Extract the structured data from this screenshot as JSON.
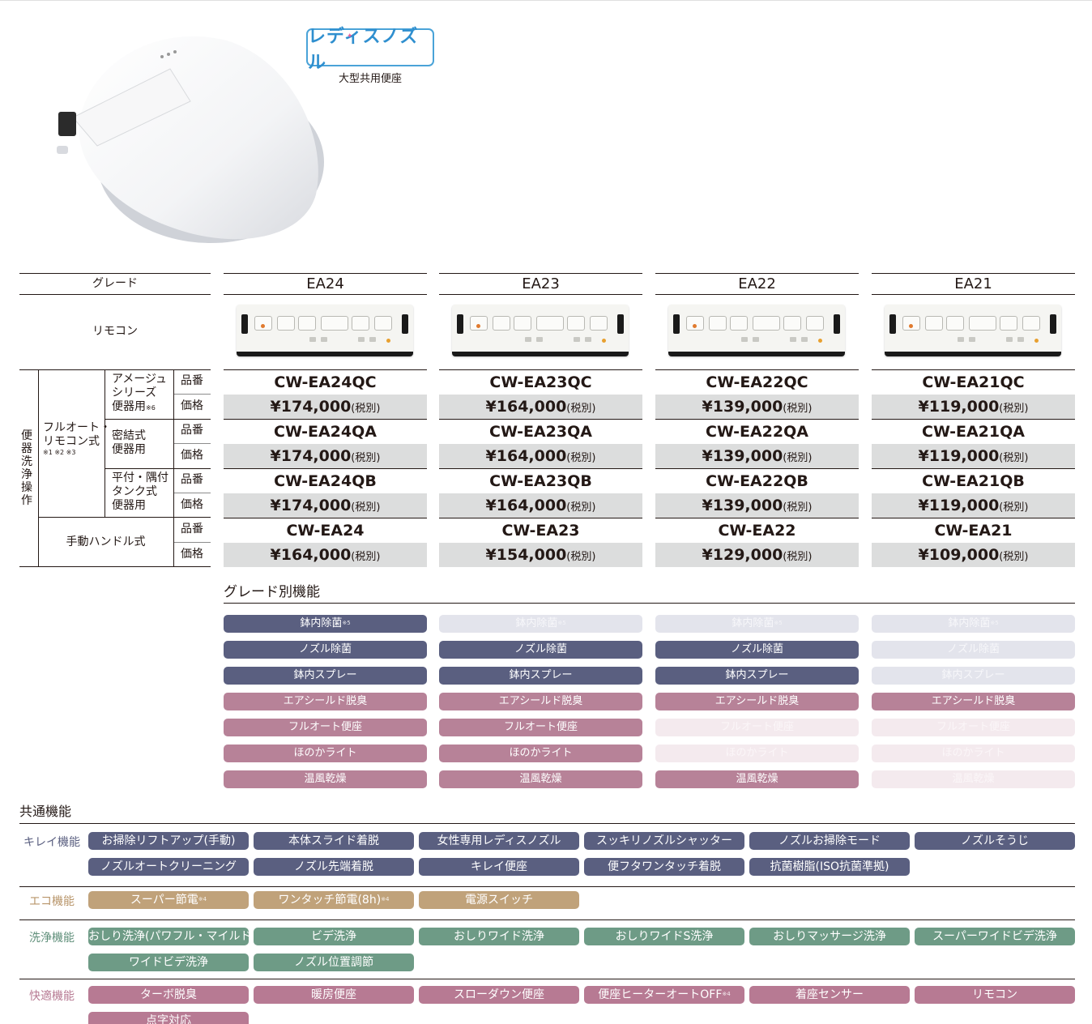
{
  "product": {
    "logo_text": "レディスノズル",
    "subtitle": "大型共用便座"
  },
  "table": {
    "grade_label": "グレード",
    "remote_label": "リモコン",
    "row_group_label": "便器洗浄操作",
    "fullauto_label_l1": "フルオート・",
    "fullauto_label_l2": "リモコン式",
    "fullauto_notes": "※1 ※2 ※3",
    "sub_amage_l1": "アメージュ",
    "sub_amage_l2": "シリーズ",
    "sub_amage_l3": "便器用",
    "sub_amage_note": "※6",
    "sub_mitsu_l1": "密結式",
    "sub_mitsu_l2": "便器用",
    "sub_hira_l1": "平付・隅付",
    "sub_hira_l2": "タンク式",
    "sub_hira_l3": "便器用",
    "manual_label": "手動ハンドル式",
    "hinban": "品番",
    "kakaku": "価格",
    "tax_note": "(税別)",
    "grades": [
      {
        "name": "EA24",
        "qc": "CW-EA24QC",
        "qc_price": "¥174,000",
        "qa": "CW-EA24QA",
        "qa_price": "¥174,000",
        "qb": "CW-EA24QB",
        "qb_price": "¥174,000",
        "manual": "CW-EA24",
        "manual_price": "¥164,000"
      },
      {
        "name": "EA23",
        "qc": "CW-EA23QC",
        "qc_price": "¥164,000",
        "qa": "CW-EA23QA",
        "qa_price": "¥164,000",
        "qb": "CW-EA23QB",
        "qb_price": "¥164,000",
        "manual": "CW-EA23",
        "manual_price": "¥154,000"
      },
      {
        "name": "EA22",
        "qc": "CW-EA22QC",
        "qc_price": "¥139,000",
        "qa": "CW-EA22QA",
        "qa_price": "¥139,000",
        "qb": "CW-EA22QB",
        "qb_price": "¥139,000",
        "manual": "CW-EA22",
        "manual_price": "¥129,000"
      },
      {
        "name": "EA21",
        "qc": "CW-EA21QC",
        "qc_price": "¥119,000",
        "qa": "CW-EA21QA",
        "qa_price": "¥119,000",
        "qb": "CW-EA21QB",
        "qb_price": "¥119,000",
        "manual": "CW-EA21",
        "manual_price": "¥109,000"
      }
    ]
  },
  "grade_features": {
    "title": "グレード別機能",
    "rows": [
      {
        "label": "鉢内除菌",
        "note": "※5",
        "color": "navy",
        "enabled": [
          true,
          false,
          false,
          false
        ]
      },
      {
        "label": "ノズル除菌",
        "note": "",
        "color": "navy",
        "enabled": [
          true,
          true,
          true,
          false
        ]
      },
      {
        "label": "鉢内スプレー",
        "note": "",
        "color": "navy",
        "enabled": [
          true,
          true,
          true,
          false
        ]
      },
      {
        "label": "エアシールド脱臭",
        "note": "",
        "color": "mauve",
        "enabled": [
          true,
          true,
          true,
          true
        ]
      },
      {
        "label": "フルオート便座",
        "note": "",
        "color": "mauve",
        "enabled": [
          true,
          true,
          false,
          false
        ]
      },
      {
        "label": "ほのかライト",
        "note": "",
        "color": "mauve",
        "enabled": [
          true,
          true,
          false,
          false
        ]
      },
      {
        "label": "温風乾燥",
        "note": "",
        "color": "mauve",
        "enabled": [
          true,
          true,
          true,
          false
        ]
      }
    ]
  },
  "common_features": {
    "title": "共通機能",
    "categories": [
      {
        "label": "キレイ機能",
        "label_color": "#5a5f80",
        "color": "navy",
        "items": [
          {
            "label": "お掃除リフトアップ(手動)",
            "note": ""
          },
          {
            "label": "本体スライド着脱",
            "note": ""
          },
          {
            "label": "女性専用レディスノズル",
            "note": ""
          },
          {
            "label": "スッキリノズルシャッター",
            "note": ""
          },
          {
            "label": "ノズルお掃除モード",
            "note": ""
          },
          {
            "label": "ノズルそうじ",
            "note": ""
          },
          {
            "label": "ノズルオートクリーニング",
            "note": ""
          },
          {
            "label": "ノズル先端着脱",
            "note": ""
          },
          {
            "label": "キレイ便座",
            "note": ""
          },
          {
            "label": "便フタワンタッチ着脱",
            "note": ""
          },
          {
            "label": "抗菌樹脂(ISO抗菌準拠)",
            "note": ""
          }
        ]
      },
      {
        "label": "エコ機能",
        "label_color": "#b8956a",
        "color": "gold",
        "items": [
          {
            "label": "スーパー節電",
            "note": "※4"
          },
          {
            "label": "ワンタッチ節電(8h)",
            "note": "※4"
          },
          {
            "label": "電源スイッチ",
            "note": ""
          }
        ]
      },
      {
        "label": "洗浄機能",
        "label_color": "#5f8f7a",
        "color": "green",
        "items": [
          {
            "label": "おしり洗浄(パワフル・マイルド)",
            "note": ""
          },
          {
            "label": "ビデ洗浄",
            "note": ""
          },
          {
            "label": "おしりワイド洗浄",
            "note": ""
          },
          {
            "label": "おしりワイドS洗浄",
            "note": ""
          },
          {
            "label": "おしりマッサージ洗浄",
            "note": ""
          },
          {
            "label": "スーパーワイドビデ洗浄",
            "note": ""
          },
          {
            "label": "ワイドビデ洗浄",
            "note": ""
          },
          {
            "label": "ノズル位置調節",
            "note": ""
          }
        ]
      },
      {
        "label": "快適機能",
        "label_color": "#b77a93",
        "color": "pink",
        "items": [
          {
            "label": "ターボ脱臭",
            "note": ""
          },
          {
            "label": "暖房便座",
            "note": ""
          },
          {
            "label": "スローダウン便座",
            "note": ""
          },
          {
            "label": "便座ヒーターオートOFF",
            "note": "※4"
          },
          {
            "label": "着座センサー",
            "note": ""
          },
          {
            "label": "リモコン",
            "note": ""
          },
          {
            "label": "点字対応",
            "note": ""
          }
        ]
      }
    ]
  }
}
